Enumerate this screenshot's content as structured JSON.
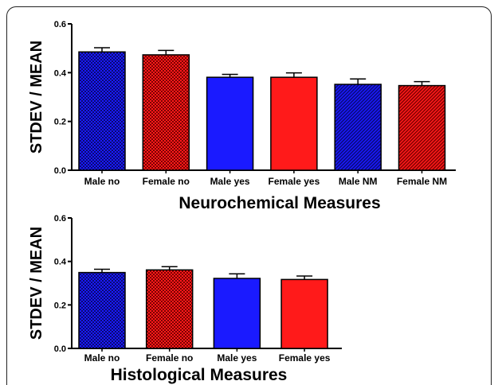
{
  "colors": {
    "blue": "#1a1aff",
    "red": "#ff1a1a",
    "navy": "#0a0a70",
    "maroon": "#7a0000"
  },
  "chart_data": [
    {
      "type": "bar",
      "title": "Neurochemical Measures",
      "xlabel": "Neurochemical Measures",
      "ylabel": "STDEV / MEAN",
      "ylim": [
        0,
        0.6
      ],
      "yticks": [
        "0.0",
        "0.2",
        "0.4",
        "0.6"
      ],
      "categories": [
        "Male no",
        "Female no",
        "Male yes",
        "Female yes",
        "Male NM",
        "Female NM"
      ],
      "values": [
        0.485,
        0.473,
        0.381,
        0.381,
        0.352,
        0.347
      ],
      "errors": [
        0.017,
        0.018,
        0.012,
        0.018,
        0.022,
        0.016
      ],
      "fills": [
        "blue-check",
        "red-check",
        "blue",
        "red",
        "blue-diag",
        "red-diag"
      ]
    },
    {
      "type": "bar",
      "title": "Histological Measures",
      "xlabel": "Histological Measures",
      "ylabel": "STDEV / MEAN",
      "ylim": [
        0,
        0.6
      ],
      "yticks": [
        "0.0",
        "0.2",
        "0.4",
        "0.6"
      ],
      "categories": [
        "Male no",
        "Female no",
        "Male yes",
        "Female yes"
      ],
      "values": [
        0.349,
        0.361,
        0.322,
        0.317
      ],
      "errors": [
        0.015,
        0.015,
        0.021,
        0.016
      ],
      "fills": [
        "blue-check",
        "red-check",
        "blue",
        "red"
      ]
    }
  ]
}
